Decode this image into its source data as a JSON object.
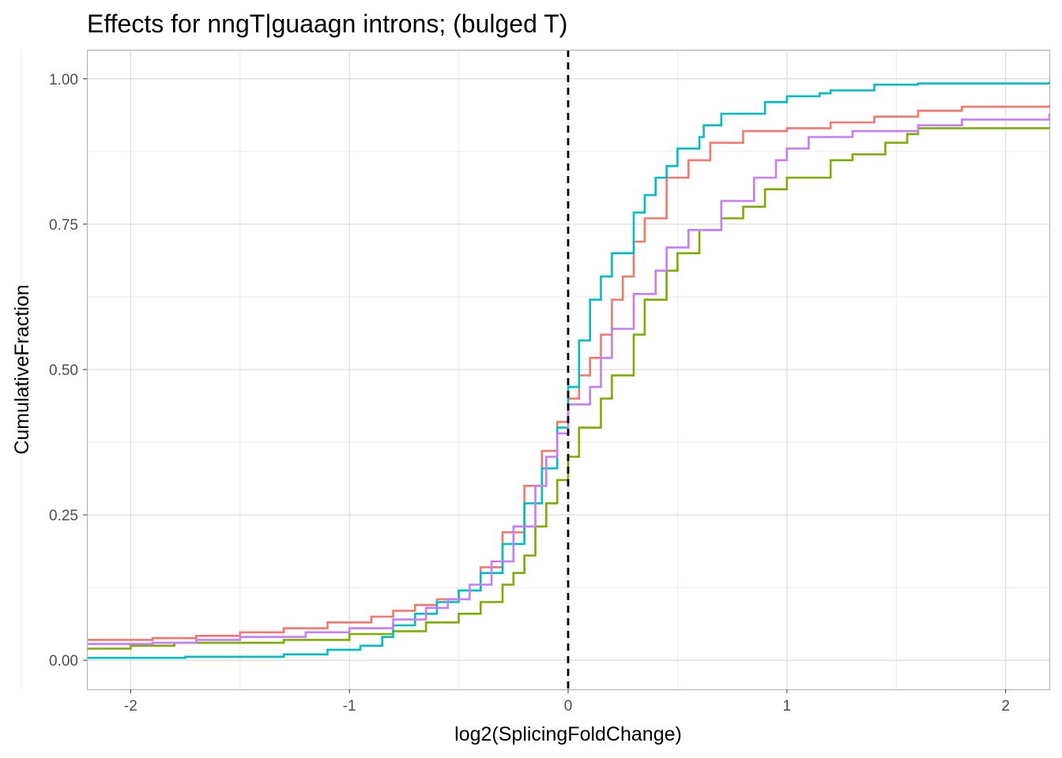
{
  "chart_data": {
    "type": "line",
    "title": "Effects for nngT|guaagn introns; (bulged T)",
    "xlabel": "log2(SplicingFoldChange)",
    "ylabel": "CumulativeFraction",
    "xlim": [
      -2.2,
      2.2
    ],
    "ylim": [
      -0.05,
      1.05
    ],
    "x_ticks": [
      {
        "v": -2,
        "label": "-2"
      },
      {
        "v": -1,
        "label": "-1"
      },
      {
        "v": 0,
        "label": "0"
      },
      {
        "v": 1,
        "label": "1"
      },
      {
        "v": 2,
        "label": "2"
      }
    ],
    "y_ticks": [
      {
        "v": 0,
        "label": "0.00"
      },
      {
        "v": 0.25,
        "label": "0.25"
      },
      {
        "v": 0.5,
        "label": "0.50"
      },
      {
        "v": 0.75,
        "label": "0.75"
      },
      {
        "v": 1,
        "label": "1.00"
      }
    ],
    "grid": true,
    "step": true,
    "reference_line": {
      "x": 0,
      "style": "dashed",
      "color": "#000000"
    },
    "series": [
      {
        "color": "#F8766D",
        "points": [
          [
            -2.2,
            0.035
          ],
          [
            -1.9,
            0.038
          ],
          [
            -1.7,
            0.042
          ],
          [
            -1.5,
            0.048
          ],
          [
            -1.3,
            0.055
          ],
          [
            -1.1,
            0.065
          ],
          [
            -0.9,
            0.075
          ],
          [
            -0.8,
            0.085
          ],
          [
            -0.7,
            0.095
          ],
          [
            -0.6,
            0.105
          ],
          [
            -0.5,
            0.12
          ],
          [
            -0.4,
            0.16
          ],
          [
            -0.3,
            0.22
          ],
          [
            -0.2,
            0.3
          ],
          [
            -0.12,
            0.36
          ],
          [
            -0.05,
            0.41
          ],
          [
            0,
            0.45
          ],
          [
            0.05,
            0.49
          ],
          [
            0.1,
            0.52
          ],
          [
            0.15,
            0.56
          ],
          [
            0.2,
            0.62
          ],
          [
            0.25,
            0.66
          ],
          [
            0.3,
            0.72
          ],
          [
            0.35,
            0.76
          ],
          [
            0.45,
            0.83
          ],
          [
            0.55,
            0.86
          ],
          [
            0.65,
            0.89
          ],
          [
            0.8,
            0.91
          ],
          [
            1.0,
            0.915
          ],
          [
            1.2,
            0.925
          ],
          [
            1.4,
            0.935
          ],
          [
            1.6,
            0.945
          ],
          [
            1.8,
            0.952
          ],
          [
            2.2,
            0.955
          ]
        ]
      },
      {
        "color": "#7CAE00",
        "points": [
          [
            -2.2,
            0.02
          ],
          [
            -2.0,
            0.025
          ],
          [
            -1.8,
            0.03
          ],
          [
            -1.3,
            0.035
          ],
          [
            -1.0,
            0.045
          ],
          [
            -0.8,
            0.05
          ],
          [
            -0.65,
            0.065
          ],
          [
            -0.5,
            0.08
          ],
          [
            -0.4,
            0.1
          ],
          [
            -0.3,
            0.13
          ],
          [
            -0.25,
            0.15
          ],
          [
            -0.2,
            0.18
          ],
          [
            -0.15,
            0.23
          ],
          [
            -0.1,
            0.27
          ],
          [
            -0.05,
            0.31
          ],
          [
            0,
            0.35
          ],
          [
            0.05,
            0.4
          ],
          [
            0.15,
            0.45
          ],
          [
            0.2,
            0.49
          ],
          [
            0.3,
            0.56
          ],
          [
            0.35,
            0.62
          ],
          [
            0.45,
            0.67
          ],
          [
            0.5,
            0.7
          ],
          [
            0.6,
            0.74
          ],
          [
            0.7,
            0.76
          ],
          [
            0.8,
            0.78
          ],
          [
            0.9,
            0.81
          ],
          [
            1.0,
            0.83
          ],
          [
            1.2,
            0.86
          ],
          [
            1.3,
            0.87
          ],
          [
            1.45,
            0.89
          ],
          [
            1.55,
            0.905
          ],
          [
            1.6,
            0.915
          ],
          [
            2.1,
            0.915
          ],
          [
            2.2,
            0.917
          ]
        ]
      },
      {
        "color": "#00BFC4",
        "points": [
          [
            -2.2,
            0.004
          ],
          [
            -1.75,
            0.006
          ],
          [
            -1.3,
            0.01
          ],
          [
            -1.1,
            0.018
          ],
          [
            -0.95,
            0.025
          ],
          [
            -0.85,
            0.04
          ],
          [
            -0.8,
            0.06
          ],
          [
            -0.7,
            0.08
          ],
          [
            -0.6,
            0.1
          ],
          [
            -0.5,
            0.12
          ],
          [
            -0.4,
            0.15
          ],
          [
            -0.3,
            0.2
          ],
          [
            -0.2,
            0.27
          ],
          [
            -0.12,
            0.33
          ],
          [
            -0.05,
            0.4
          ],
          [
            0,
            0.47
          ],
          [
            0.05,
            0.55
          ],
          [
            0.1,
            0.62
          ],
          [
            0.15,
            0.66
          ],
          [
            0.2,
            0.7
          ],
          [
            0.3,
            0.77
          ],
          [
            0.35,
            0.8
          ],
          [
            0.4,
            0.83
          ],
          [
            0.45,
            0.85
          ],
          [
            0.5,
            0.88
          ],
          [
            0.6,
            0.9
          ],
          [
            0.62,
            0.92
          ],
          [
            0.7,
            0.94
          ],
          [
            0.9,
            0.96
          ],
          [
            1.0,
            0.97
          ],
          [
            1.15,
            0.975
          ],
          [
            1.2,
            0.98
          ],
          [
            1.4,
            0.99
          ],
          [
            1.6,
            0.992
          ],
          [
            2.2,
            0.995
          ]
        ]
      },
      {
        "color": "#C77CFF",
        "points": [
          [
            -2.2,
            0.028
          ],
          [
            -1.9,
            0.03
          ],
          [
            -1.7,
            0.035
          ],
          [
            -1.5,
            0.04
          ],
          [
            -1.2,
            0.048
          ],
          [
            -1.0,
            0.055
          ],
          [
            -0.8,
            0.07
          ],
          [
            -0.65,
            0.09
          ],
          [
            -0.55,
            0.105
          ],
          [
            -0.45,
            0.13
          ],
          [
            -0.35,
            0.17
          ],
          [
            -0.25,
            0.23
          ],
          [
            -0.15,
            0.3
          ],
          [
            -0.1,
            0.35
          ],
          [
            -0.05,
            0.39
          ],
          [
            0,
            0.44
          ],
          [
            0.1,
            0.47
          ],
          [
            0.15,
            0.52
          ],
          [
            0.2,
            0.57
          ],
          [
            0.3,
            0.63
          ],
          [
            0.4,
            0.67
          ],
          [
            0.45,
            0.71
          ],
          [
            0.55,
            0.74
          ],
          [
            0.7,
            0.79
          ],
          [
            0.85,
            0.83
          ],
          [
            0.95,
            0.86
          ],
          [
            1.0,
            0.88
          ],
          [
            1.1,
            0.9
          ],
          [
            1.3,
            0.91
          ],
          [
            1.6,
            0.92
          ],
          [
            1.8,
            0.93
          ],
          [
            2.2,
            0.94
          ]
        ]
      }
    ]
  }
}
